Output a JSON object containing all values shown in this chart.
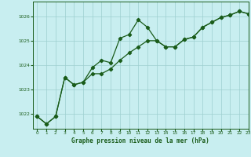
{
  "title": "Graphe pression niveau de la mer (hPa)",
  "background_color": "#c8eef0",
  "grid_color": "#9ecfcf",
  "line_color": "#1a5c1a",
  "xlim": [
    -0.5,
    23
  ],
  "ylim": [
    1021.4,
    1026.6
  ],
  "yticks": [
    1022,
    1023,
    1024,
    1025,
    1026
  ],
  "xticks": [
    0,
    1,
    2,
    3,
    4,
    5,
    6,
    7,
    8,
    9,
    10,
    11,
    12,
    13,
    14,
    15,
    16,
    17,
    18,
    19,
    20,
    21,
    22,
    23
  ],
  "series1_x": [
    0,
    1,
    2,
    3,
    4,
    5,
    6,
    7,
    8,
    9,
    10,
    11,
    12,
    13,
    14,
    15,
    16,
    17,
    18,
    19,
    20,
    21,
    22,
    23
  ],
  "series1_y": [
    1021.9,
    1021.6,
    1021.9,
    1023.5,
    1023.2,
    1023.3,
    1023.9,
    1024.2,
    1024.1,
    1025.1,
    1025.25,
    1025.85,
    1025.55,
    1025.0,
    1024.75,
    1024.75,
    1025.05,
    1025.15,
    1025.55,
    1025.75,
    1025.95,
    1026.05,
    1026.2,
    1026.1
  ],
  "series2_x": [
    0,
    1,
    2,
    3,
    4,
    5,
    6,
    7,
    8,
    9,
    10,
    11,
    12,
    13,
    14,
    15,
    16,
    17,
    18,
    19,
    20,
    21,
    22,
    23
  ],
  "series2_y": [
    1021.9,
    1021.6,
    1021.9,
    1023.5,
    1023.2,
    1023.3,
    1023.65,
    1023.65,
    1023.85,
    1024.2,
    1024.5,
    1024.75,
    1025.0,
    1025.0,
    1024.75,
    1024.75,
    1025.05,
    1025.15,
    1025.55,
    1025.75,
    1025.95,
    1026.05,
    1026.2,
    1026.1
  ]
}
